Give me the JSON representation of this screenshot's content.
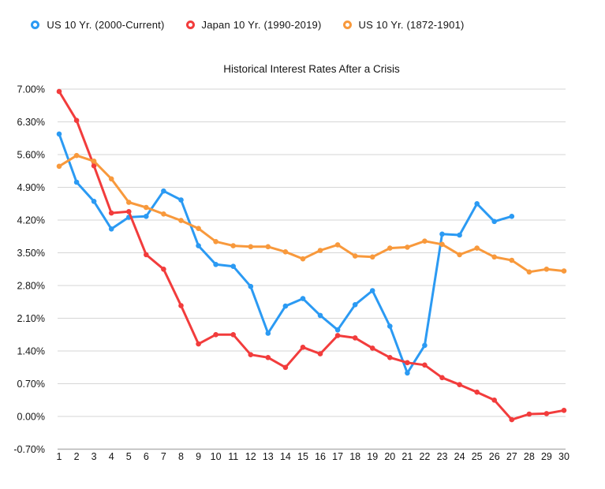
{
  "title": "Historical Interest Rates After a Crisis",
  "legend": {
    "items": [
      {
        "label": "US 10 Yr. (2000-Current)",
        "color": "#2b9af3"
      },
      {
        "label": "Japan 10 Yr. (1990-2019)",
        "color": "#f23c3c"
      },
      {
        "label": "US 10 Yr. (1872-1901)",
        "color": "#f8993c"
      }
    ]
  },
  "chart_data": {
    "type": "line",
    "title": "Historical Interest Rates After a Crisis",
    "x": [
      1,
      2,
      3,
      4,
      5,
      6,
      7,
      8,
      9,
      10,
      11,
      12,
      13,
      14,
      15,
      16,
      17,
      18,
      19,
      20,
      21,
      22,
      23,
      24,
      25,
      26,
      27,
      28,
      29,
      30
    ],
    "series": [
      {
        "name": "US 10 Yr. (2000-Current)",
        "color": "#2b9af3",
        "values": [
          6.04,
          5.01,
          4.6,
          4.01,
          4.26,
          4.28,
          4.82,
          4.63,
          3.65,
          3.25,
          3.21,
          2.78,
          1.78,
          2.36,
          2.52,
          2.16,
          1.85,
          2.39,
          2.69,
          1.93,
          0.93,
          1.52,
          3.9,
          3.88,
          4.55,
          4.17,
          4.28
        ]
      },
      {
        "name": "Japan 10 Yr. (1990-2019)",
        "color": "#f23c3c",
        "values": [
          6.95,
          6.33,
          5.36,
          4.35,
          4.38,
          3.46,
          3.15,
          2.37,
          1.55,
          1.75,
          1.75,
          1.32,
          1.26,
          1.05,
          1.48,
          1.34,
          1.73,
          1.68,
          1.46,
          1.26,
          1.15,
          1.1,
          0.83,
          0.68,
          0.52,
          0.35,
          -0.07,
          0.05,
          0.06,
          0.13
        ]
      },
      {
        "name": "US 10 Yr. (1872-1901)",
        "color": "#f8993c",
        "values": [
          5.35,
          5.58,
          5.46,
          5.08,
          4.58,
          4.47,
          4.33,
          4.19,
          4.02,
          3.74,
          3.65,
          3.63,
          3.63,
          3.52,
          3.37,
          3.55,
          3.67,
          3.43,
          3.41,
          3.6,
          3.62,
          3.75,
          3.68,
          3.46,
          3.6,
          3.41,
          3.34,
          3.09,
          3.15,
          3.11
        ]
      }
    ],
    "ylim": [
      -0.7,
      7.0
    ],
    "y_ticks": [
      "7.00%",
      "6.30%",
      "5.60%",
      "4.90%",
      "4.20%",
      "3.50%",
      "2.80%",
      "2.10%",
      "1.40%",
      "0.70%",
      "0.00%",
      "-0.70%"
    ],
    "grid": true,
    "legend_position": "top",
    "marker": "circle"
  }
}
